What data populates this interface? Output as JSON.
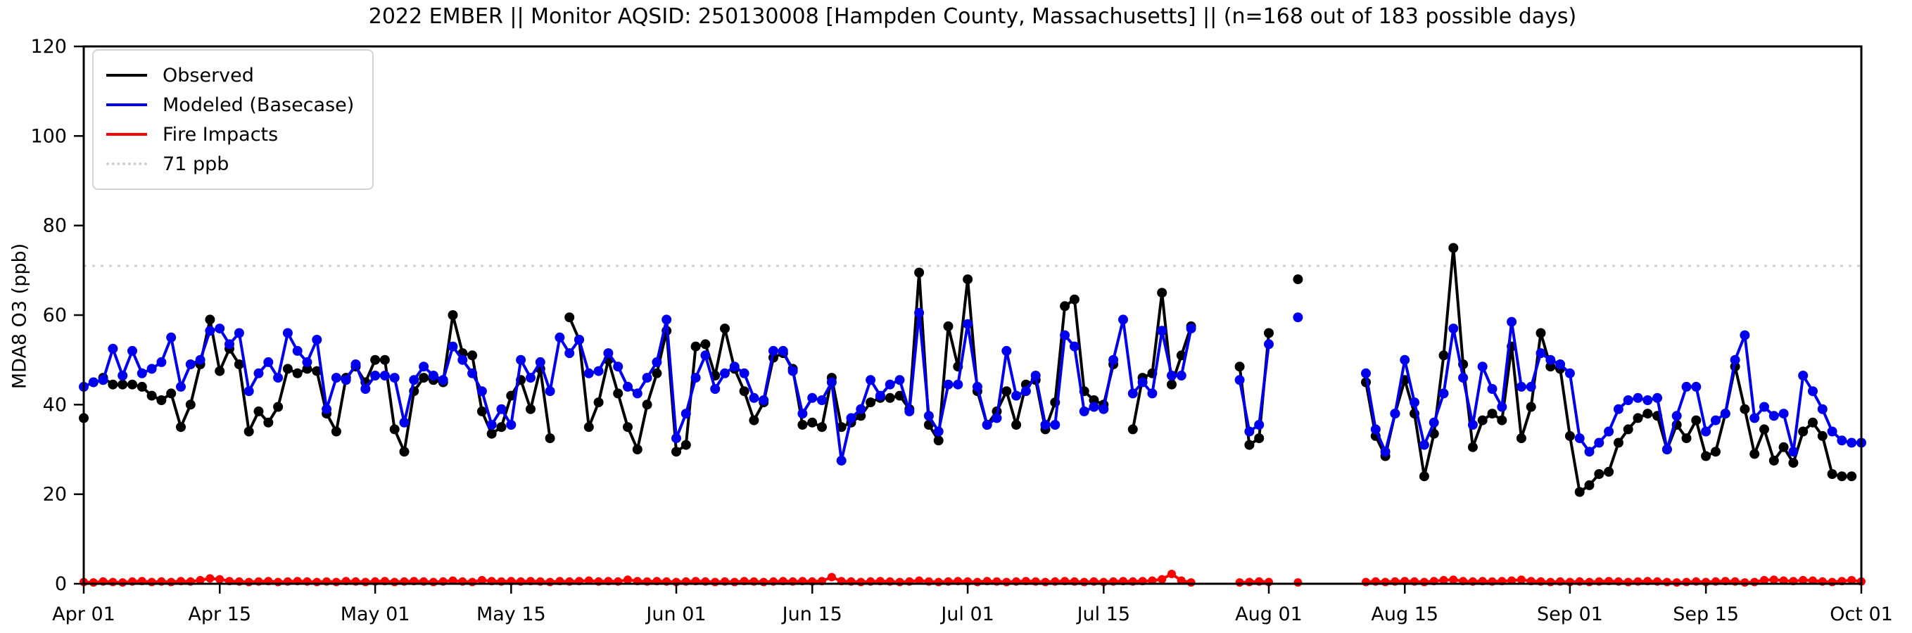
{
  "title": "2022 EMBER || Monitor AQSID: 250130008 [Hampden County, Massachusetts] || (n=168 out of 183 possible days)",
  "legend": [
    {
      "label": "Observed",
      "color": "#000000",
      "style": "solid"
    },
    {
      "label": "Modeled (Basecase)",
      "color": "#0000ee",
      "style": "solid"
    },
    {
      "label": "Fire Impacts",
      "color": "#ff0000",
      "style": "solid"
    },
    {
      "label": "71 ppb",
      "color": "#d0d0d0",
      "style": "dotted"
    }
  ],
  "chart_data": {
    "type": "line",
    "title": "2022 EMBER || Monitor AQSID: 250130008 [Hampden County, Massachusetts] || (n=168 out of 183 possible days)",
    "xlabel": "",
    "ylabel": "MDA8 O3 (ppb)",
    "ylim": [
      0,
      120
    ],
    "yticks": [
      0,
      20,
      40,
      60,
      80,
      100,
      120
    ],
    "x_start_label": "Apr 01",
    "x_max_day": 183,
    "xtick_days": [
      0,
      14,
      30,
      44,
      61,
      75,
      91,
      105,
      122,
      136,
      153,
      167,
      183
    ],
    "xtick_labels": [
      "Apr 01",
      "Apr 15",
      "May 01",
      "May 15",
      "Jun 01",
      "Jun 15",
      "Jul 01",
      "Jul 15",
      "Aug 01",
      "Aug 15",
      "Sep 01",
      "Sep 15",
      "Oct 01"
    ],
    "threshold": {
      "value": 71,
      "label": "71 ppb",
      "color": "#d0d0d0"
    },
    "grid": false,
    "legend_position": "upper-left",
    "note": "values are daily MDA8 O3 in ppb indexed from Apr 01 (day 0) to Oct 01 (day 183); null = missing day (no marker, gap)",
    "series": [
      {
        "name": "Observed",
        "color": "#000000",
        "marker": "circle",
        "values": [
          37,
          null,
          46,
          44.5,
          44.5,
          44.5,
          44,
          42,
          41,
          42.5,
          35,
          40,
          49,
          59,
          47.5,
          52.5,
          49,
          34,
          38.5,
          36,
          39.5,
          48,
          47,
          48,
          47.5,
          38,
          34,
          46,
          48.5,
          45,
          50,
          50,
          34.5,
          29.5,
          43,
          46,
          45.5,
          45,
          60,
          51.5,
          51,
          38.5,
          33.5,
          35,
          42,
          45.5,
          39,
          48,
          32.5,
          null,
          59.5,
          54.5,
          35,
          40.5,
          50,
          42.5,
          35,
          30,
          40,
          47,
          56.5,
          29.5,
          31,
          53,
          53.5,
          46.5,
          57,
          48,
          43,
          36.5,
          40.5,
          50.5,
          51.5,
          48,
          35.5,
          36,
          35,
          46,
          35,
          36,
          37.5,
          40.5,
          41.5,
          41.5,
          42,
          39,
          69.5,
          35.5,
          32,
          57.5,
          48.5,
          68,
          43,
          35.5,
          38.5,
          43,
          35.5,
          44.5,
          45.5,
          34.5,
          40.5,
          62,
          63.5,
          43,
          41,
          40,
          49,
          null,
          34.5,
          46,
          47,
          65,
          44.5,
          51,
          57.5,
          null,
          null,
          null,
          null,
          48.5,
          31,
          32.5,
          56,
          null,
          null,
          68,
          null,
          null,
          null,
          null,
          null,
          null,
          45,
          33,
          28.5,
          38,
          45.5,
          38,
          24,
          33.5,
          51,
          75,
          49,
          30.5,
          36.5,
          38,
          36.5,
          53,
          32.5,
          39.5,
          56,
          48.5,
          48,
          33,
          20.5,
          22,
          24.5,
          25,
          31.5,
          34.5,
          37,
          38,
          37.5,
          30,
          35.5,
          32.5,
          36.5,
          28.5,
          29.5,
          38,
          48.5,
          39,
          29,
          34.5,
          27.5,
          30.5,
          27,
          34,
          36,
          33,
          24.5,
          24,
          24,
          null
        ]
      },
      {
        "name": "Modeled (Basecase)",
        "color": "#0000ee",
        "marker": "circle",
        "values": [
          44,
          45,
          45.5,
          52.5,
          46.5,
          52,
          47,
          48,
          49.5,
          55,
          44,
          49,
          50,
          56.5,
          57,
          53.5,
          56,
          43,
          47,
          49.5,
          46,
          56,
          52,
          49.5,
          54.5,
          39,
          46,
          45.5,
          49,
          43.5,
          46.5,
          46.5,
          46,
          36,
          45.5,
          48.5,
          46.5,
          45.5,
          53,
          50,
          47,
          43,
          35.5,
          39,
          35.5,
          50,
          46,
          49.5,
          43,
          55,
          51.5,
          54.5,
          47,
          47.5,
          51.5,
          48.5,
          44,
          42.5,
          46,
          49.5,
          59,
          32.5,
          38,
          46,
          51,
          43.5,
          47,
          48.5,
          47,
          41.5,
          41,
          52,
          52,
          47.5,
          38,
          41.5,
          41,
          45,
          27.5,
          37,
          39,
          45.5,
          42,
          44.5,
          45.5,
          38.5,
          60.5,
          37.5,
          34,
          44.5,
          44.5,
          58,
          44,
          35.5,
          37,
          52,
          42,
          43,
          46.5,
          35.5,
          35.5,
          55.5,
          53,
          38.5,
          39.5,
          39,
          50,
          59,
          42.5,
          45,
          42.5,
          56.5,
          46.5,
          46.5,
          57,
          null,
          null,
          null,
          null,
          45.5,
          34,
          35.5,
          53.5,
          null,
          null,
          59.5,
          null,
          null,
          null,
          null,
          null,
          null,
          47,
          34.5,
          29.5,
          38,
          50,
          40.5,
          31,
          36,
          42.5,
          57,
          46,
          35.5,
          48.5,
          43.5,
          39.5,
          58.5,
          44,
          44,
          51.5,
          50,
          49,
          47,
          32.5,
          29.5,
          31.5,
          34,
          39,
          41,
          41.5,
          41,
          41.5,
          30,
          37.5,
          44,
          44,
          34,
          36.5,
          38,
          50,
          55.5,
          37,
          39.5,
          37.5,
          38,
          29.5,
          46.5,
          43,
          39,
          34,
          32,
          31.5,
          31.5
        ]
      },
      {
        "name": "Fire Impacts",
        "color": "#ff0000",
        "marker": "circle",
        "values": [
          0.4,
          0.3,
          0.5,
          0.4,
          0.3,
          0.5,
          0.6,
          0.4,
          0.5,
          0.4,
          0.6,
          0.5,
          0.8,
          1.2,
          1.0,
          0.6,
          0.5,
          0.4,
          0.5,
          0.6,
          0.4,
          0.5,
          0.6,
          0.5,
          0.4,
          0.5,
          0.4,
          0.6,
          0.5,
          0.4,
          0.5,
          0.6,
          0.4,
          0.5,
          0.6,
          0.5,
          0.4,
          0.5,
          0.7,
          0.5,
          0.4,
          0.8,
          0.6,
          0.5,
          0.6,
          0.5,
          0.6,
          0.5,
          0.4,
          0.6,
          0.5,
          0.6,
          0.7,
          0.5,
          0.6,
          0.5,
          0.9,
          0.6,
          0.5,
          0.6,
          0.5,
          0.4,
          0.5,
          0.6,
          0.5,
          0.4,
          0.5,
          0.4,
          0.6,
          0.5,
          0.4,
          0.5,
          0.6,
          0.5,
          0.6,
          0.5,
          0.6,
          1.5,
          0.6,
          0.5,
          0.4,
          0.5,
          0.6,
          0.5,
          0.4,
          0.5,
          0.7,
          0.5,
          0.4,
          0.5,
          0.6,
          0.5,
          0.4,
          0.6,
          0.5,
          0.4,
          0.5,
          0.6,
          0.5,
          0.4,
          0.5,
          0.6,
          0.5,
          0.4,
          0.5,
          0.4,
          0.5,
          0.6,
          0.5,
          0.6,
          0.7,
          1.0,
          2.2,
          0.7,
          0.3,
          null,
          null,
          null,
          null,
          0.3,
          0.4,
          0.5,
          0.4,
          null,
          null,
          0.3,
          null,
          null,
          null,
          null,
          null,
          null,
          0.4,
          0.5,
          0.4,
          0.5,
          0.6,
          0.5,
          0.4,
          0.6,
          0.8,
          0.9,
          0.6,
          0.5,
          0.6,
          0.5,
          0.6,
          0.7,
          0.9,
          0.6,
          0.5,
          0.4,
          0.5,
          0.4,
          0.5,
          0.4,
          0.5,
          0.6,
          0.5,
          0.4,
          0.5,
          0.6,
          0.5,
          0.4,
          0.3,
          0.4,
          0.5,
          0.4,
          0.5,
          0.6,
          0.5,
          0.3,
          0.4,
          0.8,
          0.9,
          0.7,
          0.6,
          0.8,
          0.7,
          0.5,
          0.4,
          0.6,
          0.8,
          0.5
        ]
      }
    ]
  }
}
